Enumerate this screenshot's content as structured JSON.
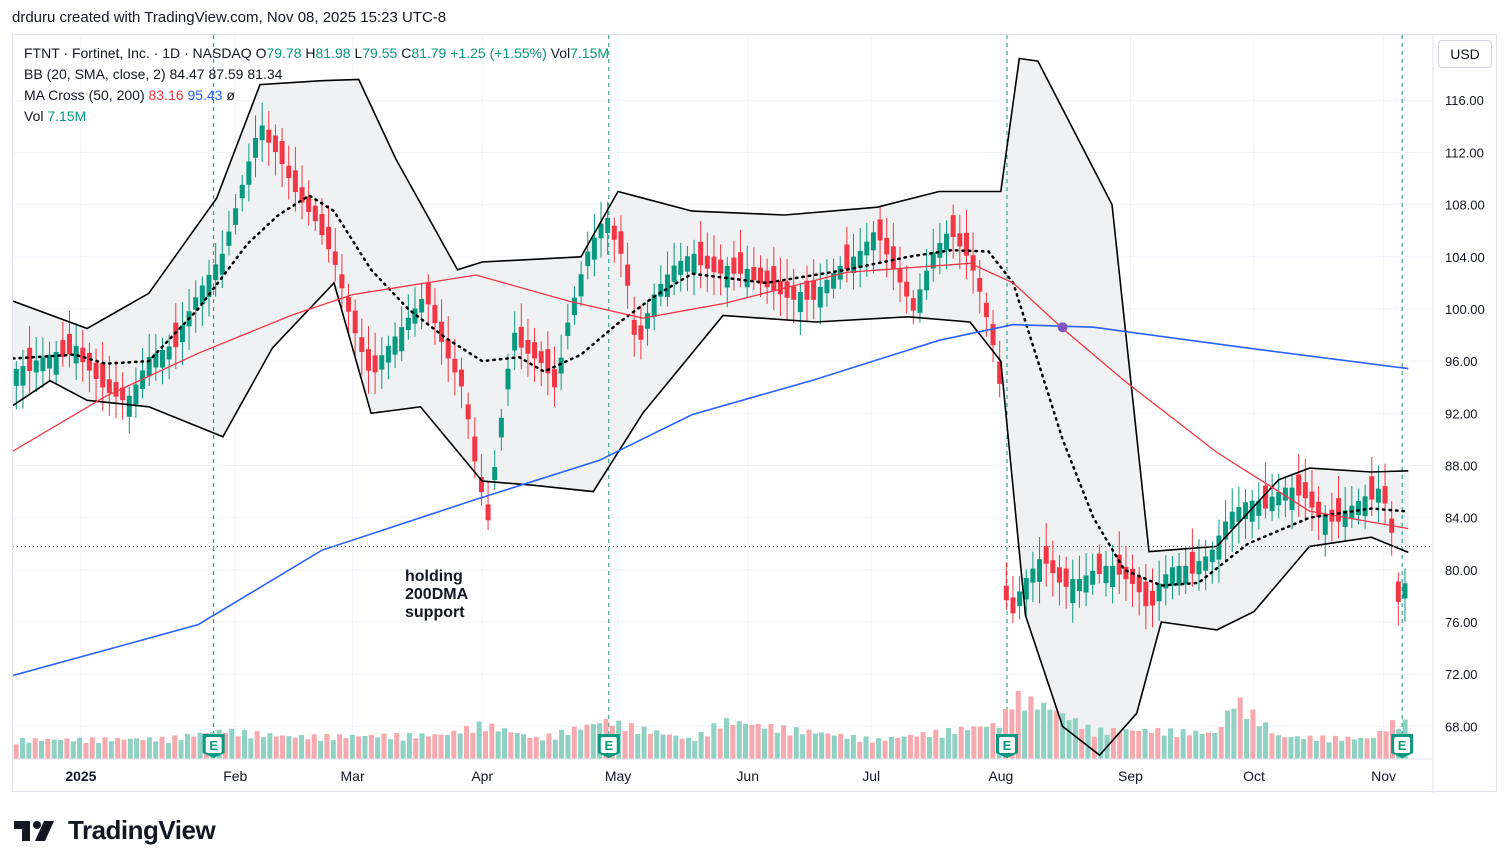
{
  "header": {
    "caption": "drduru created with TradingView.com, Nov 08, 2025 15:23 UTC-8"
  },
  "legend": {
    "symbol": {
      "label": "FTNT · Fortinet, Inc. · 1D · NASDAQ",
      "o_label": "O",
      "o_value": "79.78",
      "h_label": "H",
      "h_value": "81.98",
      "l_label": "L",
      "l_value": "79.55",
      "c_label": "C",
      "c_value": "81.79",
      "change": "+1.25 (+1.55%)",
      "vol_label": "Vol",
      "vol_value": "7.15M"
    },
    "bb": {
      "label": "BB (20, SMA, close, 2)",
      "v1": "84.47",
      "v2": "87.59",
      "v3": "81.34"
    },
    "ma": {
      "label": "MA Cross (50, 200)",
      "v1": "83.16",
      "v2": "95.43",
      "symbol": "ø"
    },
    "vol": {
      "label": "Vol",
      "value": "7.15M"
    }
  },
  "currency_button": "USD",
  "annotation": [
    "holding",
    "200DMA",
    "support"
  ],
  "brand": {
    "name": "TradingView"
  },
  "colors": {
    "up": "#089981",
    "down": "#f23645",
    "ma50": "#f23645",
    "ma200": "#2962ff",
    "bb_line": "#000000",
    "bb_fill": "#f0f1f2",
    "earnings": "#089981",
    "cross": "#7e57c2"
  },
  "chart_data": {
    "type": "candlestick",
    "ylim": [
      65.5,
      121
    ],
    "y_ticks": [
      68,
      72,
      76,
      80,
      84,
      88,
      92,
      96,
      100,
      104,
      108,
      112,
      116
    ],
    "y_tick_labels": [
      "68.00",
      "72.00",
      "76.00",
      "80.00",
      "84.00",
      "88.00",
      "92.00",
      "96.00",
      "100.00",
      "104.00",
      "108.00",
      "112.00",
      "116.00"
    ],
    "x_axis": [
      {
        "label": "2025",
        "t": 0.11,
        "bold": true
      },
      {
        "label": "Feb",
        "t": 0.36,
        "bold": false
      },
      {
        "label": "Mar",
        "t": 0.55,
        "bold": false
      },
      {
        "label": "Apr",
        "t": 0.76,
        "bold": false
      },
      {
        "label": "May",
        "t": 0.98,
        "bold": false
      },
      {
        "label": "Jun",
        "t": 1.19,
        "bold": false
      },
      {
        "label": "Jul",
        "t": 1.39,
        "bold": false
      },
      {
        "label": "Aug",
        "t": 1.6,
        "bold": false
      },
      {
        "label": "Sep",
        "t": 1.81,
        "bold": false
      },
      {
        "label": "Oct",
        "t": 2.01,
        "bold": false
      },
      {
        "label": "Nov",
        "t": 2.22,
        "bold": false
      }
    ],
    "earnings_marks": [
      {
        "label": "E",
        "t": 0.325
      },
      {
        "label": "E",
        "t": 0.965
      },
      {
        "label": "E",
        "t": 1.61
      },
      {
        "label": "E",
        "t": 2.25
      }
    ],
    "current_price": 81.79,
    "cross_point": {
      "t": 1.7,
      "value": 98.6
    },
    "ohlc_anchors": [
      [
        0.0,
        95
      ],
      [
        0.1,
        97
      ],
      [
        0.15,
        94
      ],
      [
        0.19,
        93
      ],
      [
        0.22,
        96
      ],
      [
        0.26,
        97
      ],
      [
        0.3,
        101
      ],
      [
        0.34,
        104
      ],
      [
        0.37,
        109
      ],
      [
        0.4,
        114
      ],
      [
        0.43,
        112
      ],
      [
        0.46,
        109
      ],
      [
        0.49,
        107
      ],
      [
        0.52,
        104
      ],
      [
        0.55,
        99
      ],
      [
        0.58,
        95
      ],
      [
        0.61,
        97
      ],
      [
        0.64,
        99
      ],
      [
        0.67,
        101
      ],
      [
        0.7,
        97
      ],
      [
        0.73,
        94
      ],
      [
        0.75,
        88
      ],
      [
        0.77,
        84
      ],
      [
        0.79,
        91
      ],
      [
        0.81,
        98
      ],
      [
        0.83,
        97
      ],
      [
        0.86,
        96
      ],
      [
        0.88,
        94
      ],
      [
        0.9,
        99
      ],
      [
        0.93,
        104
      ],
      [
        0.96,
        107
      ],
      [
        0.99,
        104
      ],
      [
        1.01,
        97
      ],
      [
        1.04,
        101
      ],
      [
        1.07,
        103
      ],
      [
        1.1,
        104
      ],
      [
        1.14,
        103
      ],
      [
        1.18,
        103
      ],
      [
        1.22,
        102
      ],
      [
        1.26,
        101
      ],
      [
        1.3,
        101
      ],
      [
        1.34,
        103
      ],
      [
        1.37,
        104
      ],
      [
        1.4,
        106
      ],
      [
        1.43,
        103
      ],
      [
        1.46,
        100
      ],
      [
        1.49,
        104
      ],
      [
        1.52,
        106
      ],
      [
        1.55,
        104
      ],
      [
        1.57,
        101
      ],
      [
        1.59,
        97
      ],
      [
        1.6,
        94
      ],
      [
        1.61,
        76
      ],
      [
        1.64,
        79
      ],
      [
        1.67,
        81
      ],
      [
        1.7,
        79
      ],
      [
        1.73,
        79
      ],
      [
        1.76,
        80
      ],
      [
        1.79,
        80
      ],
      [
        1.82,
        79
      ],
      [
        1.84,
        77
      ],
      [
        1.86,
        79
      ],
      [
        1.88,
        80
      ],
      [
        1.91,
        80
      ],
      [
        1.94,
        81
      ],
      [
        1.97,
        84
      ],
      [
        2.0,
        85
      ],
      [
        2.03,
        85
      ],
      [
        2.06,
        86
      ],
      [
        2.09,
        86
      ],
      [
        2.12,
        84
      ],
      [
        2.15,
        84
      ],
      [
        2.18,
        85
      ],
      [
        2.21,
        86
      ],
      [
        2.23,
        85
      ],
      [
        2.24,
        79
      ],
      [
        2.25,
        76
      ],
      [
        2.26,
        81.79
      ]
    ],
    "ma200": [
      [
        0.0,
        71.9
      ],
      [
        0.3,
        75.8
      ],
      [
        0.5,
        81.5
      ],
      [
        0.75,
        85.4
      ],
      [
        0.95,
        88.4
      ],
      [
        1.1,
        91.9
      ],
      [
        1.3,
        94.6
      ],
      [
        1.5,
        97.6
      ],
      [
        1.62,
        98.8
      ],
      [
        1.75,
        98.6
      ],
      [
        2.0,
        97.0
      ],
      [
        2.26,
        95.43
      ]
    ],
    "ma50": [
      [
        0.0,
        89.1
      ],
      [
        0.15,
        93.3
      ],
      [
        0.3,
        96.6
      ],
      [
        0.45,
        99.5
      ],
      [
        0.55,
        101.1
      ],
      [
        0.75,
        102.6
      ],
      [
        0.9,
        100.6
      ],
      [
        1.02,
        99.3
      ],
      [
        1.15,
        100.4
      ],
      [
        1.35,
        102.8
      ],
      [
        1.55,
        103.5
      ],
      [
        1.62,
        102.0
      ],
      [
        1.7,
        98.5
      ],
      [
        1.8,
        94.5
      ],
      [
        1.95,
        89.0
      ],
      [
        2.1,
        84.5
      ],
      [
        2.26,
        83.16
      ]
    ],
    "bb_upper": [
      [
        0.0,
        100.6
      ],
      [
        0.12,
        98.5
      ],
      [
        0.22,
        101.2
      ],
      [
        0.33,
        108.5
      ],
      [
        0.4,
        117.2
      ],
      [
        0.5,
        117.5
      ],
      [
        0.56,
        117.6
      ],
      [
        0.62,
        111.5
      ],
      [
        0.72,
        103.0
      ],
      [
        0.76,
        103.6
      ],
      [
        0.84,
        103.8
      ],
      [
        0.92,
        104.0
      ],
      [
        0.98,
        109.0
      ],
      [
        1.1,
        107.5
      ],
      [
        1.25,
        107.2
      ],
      [
        1.4,
        107.8
      ],
      [
        1.5,
        109.0
      ],
      [
        1.6,
        109.0
      ],
      [
        1.63,
        119.2
      ],
      [
        1.66,
        119.0
      ],
      [
        1.78,
        108.0
      ],
      [
        1.84,
        81.4
      ],
      [
        1.95,
        81.8
      ],
      [
        2.05,
        86.9
      ],
      [
        2.1,
        87.8
      ],
      [
        2.2,
        87.5
      ],
      [
        2.26,
        87.59
      ]
    ],
    "bb_lower": [
      [
        0.0,
        92.6
      ],
      [
        0.06,
        94.5
      ],
      [
        0.12,
        93.0
      ],
      [
        0.22,
        92.5
      ],
      [
        0.34,
        90.2
      ],
      [
        0.42,
        97.0
      ],
      [
        0.52,
        102.0
      ],
      [
        0.58,
        92.0
      ],
      [
        0.66,
        92.5
      ],
      [
        0.76,
        86.8
      ],
      [
        0.84,
        86.5
      ],
      [
        0.94,
        86.0
      ],
      [
        1.02,
        92.0
      ],
      [
        1.15,
        99.5
      ],
      [
        1.3,
        99.0
      ],
      [
        1.45,
        99.4
      ],
      [
        1.55,
        99.0
      ],
      [
        1.6,
        96.0
      ],
      [
        1.64,
        76.5
      ],
      [
        1.7,
        68.0
      ],
      [
        1.76,
        65.8
      ],
      [
        1.82,
        69.0
      ],
      [
        1.86,
        76.0
      ],
      [
        1.95,
        75.4
      ],
      [
        2.01,
        76.8
      ],
      [
        2.1,
        81.8
      ],
      [
        2.2,
        82.5
      ],
      [
        2.26,
        81.34
      ]
    ],
    "bb_basis": [
      [
        0.0,
        96.2
      ],
      [
        0.1,
        96.5
      ],
      [
        0.15,
        95.8
      ],
      [
        0.22,
        96.0
      ],
      [
        0.3,
        100.0
      ],
      [
        0.38,
        105.0
      ],
      [
        0.43,
        107.2
      ],
      [
        0.48,
        108.7
      ],
      [
        0.52,
        107.5
      ],
      [
        0.58,
        103.0
      ],
      [
        0.64,
        100.0
      ],
      [
        0.7,
        97.8
      ],
      [
        0.76,
        96.0
      ],
      [
        0.82,
        96.3
      ],
      [
        0.86,
        95.2
      ],
      [
        0.92,
        96.5
      ],
      [
        0.98,
        98.9
      ],
      [
        1.04,
        101.0
      ],
      [
        1.1,
        102.7
      ],
      [
        1.22,
        102.0
      ],
      [
        1.35,
        103.0
      ],
      [
        1.45,
        104.0
      ],
      [
        1.52,
        104.5
      ],
      [
        1.58,
        104.4
      ],
      [
        1.62,
        102.0
      ],
      [
        1.66,
        96.0
      ],
      [
        1.7,
        90.0
      ],
      [
        1.75,
        84.0
      ],
      [
        1.8,
        80.0
      ],
      [
        1.86,
        78.8
      ],
      [
        1.92,
        79.0
      ],
      [
        2.0,
        82.0
      ],
      [
        2.05,
        83.0
      ],
      [
        2.1,
        84.0
      ],
      [
        2.2,
        84.7
      ],
      [
        2.26,
        84.47
      ]
    ],
    "volume_profile": [
      [
        0.0,
        0.3
      ],
      [
        0.25,
        0.32
      ],
      [
        0.34,
        0.45
      ],
      [
        0.45,
        0.35
      ],
      [
        0.7,
        0.38
      ],
      [
        0.76,
        0.55
      ],
      [
        0.85,
        0.32
      ],
      [
        0.96,
        0.6
      ],
      [
        1.1,
        0.3
      ],
      [
        1.15,
        0.6
      ],
      [
        1.4,
        0.3
      ],
      [
        1.6,
        0.55
      ],
      [
        1.62,
        1.0
      ],
      [
        1.68,
        0.8
      ],
      [
        1.75,
        0.45
      ],
      [
        1.85,
        0.45
      ],
      [
        1.95,
        0.4
      ],
      [
        1.98,
        0.95
      ],
      [
        2.05,
        0.35
      ],
      [
        2.2,
        0.32
      ],
      [
        2.24,
        0.6
      ],
      [
        2.26,
        0.55
      ]
    ]
  }
}
